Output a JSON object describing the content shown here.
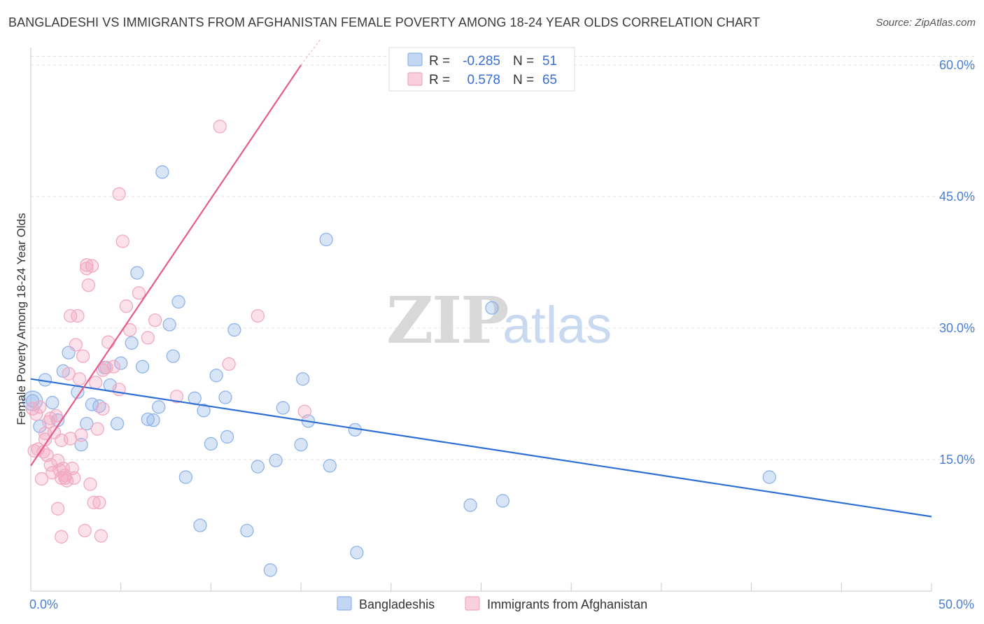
{
  "chart_data": {
    "type": "scatter",
    "title": "BANGLADESHI VS IMMIGRANTS FROM AFGHANISTAN FEMALE POVERTY AMONG 18-24 YEAR OLDS CORRELATION CHART",
    "source": "Source: ZipAtlas.com",
    "ylabel": "Female Poverty Among 18-24 Year Olds",
    "xlim": [
      0,
      50
    ],
    "ylim": [
      0,
      62
    ],
    "x_tick_labels": [
      "0.0%",
      "50.0%"
    ],
    "y_ticks": [
      15,
      30,
      45,
      60
    ],
    "y_tick_labels": [
      "15.0%",
      "30.0%",
      "45.0%",
      "60.0%"
    ],
    "watermark": {
      "zip": "ZIP",
      "atlas": "atlas"
    },
    "legend": {
      "r_label": "R =",
      "n_label": "N =",
      "entries": [
        {
          "r": "-0.285",
          "n": "51"
        },
        {
          "r": "0.578",
          "n": "65"
        }
      ]
    },
    "series": [
      {
        "name": "Bangladeshis",
        "color": "#8fb4e8",
        "line_color": "#2d6fd4",
        "trend": {
          "x": [
            0,
            50
          ],
          "y": [
            24.2,
            8.5
          ]
        },
        "points": [
          [
            0.1,
            21.7
          ],
          [
            0.5,
            18.8
          ],
          [
            0.8,
            24.1
          ],
          [
            1.2,
            21.5
          ],
          [
            1.5,
            19.5
          ],
          [
            1.8,
            25.1
          ],
          [
            2.1,
            27.2
          ],
          [
            2.6,
            22.7
          ],
          [
            2.8,
            16.7
          ],
          [
            3.1,
            19.1
          ],
          [
            3.4,
            21.3
          ],
          [
            3.8,
            21.1
          ],
          [
            4.1,
            25.5
          ],
          [
            4.4,
            23.5
          ],
          [
            4.8,
            19.1
          ],
          [
            5.0,
            26.0
          ],
          [
            5.6,
            28.3
          ],
          [
            5.9,
            36.3
          ],
          [
            6.2,
            25.6
          ],
          [
            6.5,
            19.6
          ],
          [
            6.8,
            19.5
          ],
          [
            7.1,
            21.0
          ],
          [
            7.3,
            47.8
          ],
          [
            7.7,
            30.4
          ],
          [
            7.9,
            26.8
          ],
          [
            8.2,
            33.0
          ],
          [
            8.6,
            13.0
          ],
          [
            9.1,
            22.0
          ],
          [
            9.4,
            7.5
          ],
          [
            9.6,
            20.6
          ],
          [
            10.0,
            16.8
          ],
          [
            10.3,
            24.6
          ],
          [
            10.8,
            22.1
          ],
          [
            10.9,
            17.6
          ],
          [
            11.3,
            29.8
          ],
          [
            12.0,
            6.9
          ],
          [
            12.6,
            14.2
          ],
          [
            13.3,
            2.4
          ],
          [
            13.6,
            14.9
          ],
          [
            14.0,
            20.9
          ],
          [
            15.0,
            16.7
          ],
          [
            15.1,
            24.2
          ],
          [
            15.4,
            19.4
          ],
          [
            16.4,
            40.1
          ],
          [
            16.6,
            14.3
          ],
          [
            18.0,
            18.4
          ],
          [
            18.1,
            4.4
          ],
          [
            24.4,
            9.8
          ],
          [
            25.6,
            32.3
          ],
          [
            26.2,
            10.3
          ],
          [
            41.0,
            13.0
          ]
        ]
      },
      {
        "name": "Immigrants from Afghanistan",
        "color": "#f2a9c2",
        "line_color": "#e55c8a",
        "trend": {
          "x": [
            0,
            15
          ],
          "y": [
            14.3,
            60.0
          ]
        },
        "trend_dashed": {
          "x": [
            15,
            16.1
          ],
          "y": [
            60.0,
            63.0
          ]
        },
        "points": [
          [
            0.1,
            20.8
          ],
          [
            0.2,
            16.0
          ],
          [
            0.3,
            20.2
          ],
          [
            0.4,
            16.2
          ],
          [
            0.5,
            21.0
          ],
          [
            0.6,
            12.8
          ],
          [
            0.7,
            15.9
          ],
          [
            0.8,
            17.3
          ],
          [
            0.8,
            18.0
          ],
          [
            0.9,
            15.5
          ],
          [
            1.0,
            19.3
          ],
          [
            1.1,
            19.7
          ],
          [
            1.1,
            14.4
          ],
          [
            1.2,
            13.5
          ],
          [
            1.3,
            18.1
          ],
          [
            1.4,
            20.0
          ],
          [
            1.5,
            14.9
          ],
          [
            1.5,
            9.4
          ],
          [
            1.6,
            13.8
          ],
          [
            1.7,
            12.9
          ],
          [
            1.7,
            17.2
          ],
          [
            1.7,
            6.2
          ],
          [
            1.8,
            14.0
          ],
          [
            1.9,
            13.2
          ],
          [
            1.9,
            12.9
          ],
          [
            2.0,
            12.6
          ],
          [
            2.1,
            24.8
          ],
          [
            2.2,
            17.4
          ],
          [
            2.2,
            31.4
          ],
          [
            2.3,
            14.0
          ],
          [
            2.4,
            12.9
          ],
          [
            2.5,
            28.1
          ],
          [
            2.6,
            31.4
          ],
          [
            2.7,
            24.2
          ],
          [
            2.8,
            17.8
          ],
          [
            2.9,
            26.8
          ],
          [
            3.0,
            6.9
          ],
          [
            3.1,
            37.2
          ],
          [
            3.1,
            36.8
          ],
          [
            3.2,
            34.9
          ],
          [
            3.3,
            12.2
          ],
          [
            3.4,
            37.1
          ],
          [
            3.5,
            10.1
          ],
          [
            3.6,
            23.8
          ],
          [
            3.7,
            18.5
          ],
          [
            3.8,
            10.1
          ],
          [
            3.9,
            6.3
          ],
          [
            4.0,
            20.8
          ],
          [
            4.0,
            25.2
          ],
          [
            4.2,
            25.5
          ],
          [
            4.3,
            28.4
          ],
          [
            4.6,
            25.6
          ],
          [
            4.9,
            23.0
          ],
          [
            4.9,
            45.3
          ],
          [
            5.1,
            39.9
          ],
          [
            5.3,
            32.5
          ],
          [
            5.5,
            29.8
          ],
          [
            6.0,
            34.0
          ],
          [
            6.5,
            28.9
          ],
          [
            6.9,
            30.9
          ],
          [
            8.1,
            22.2
          ],
          [
            10.5,
            53.0
          ],
          [
            11.0,
            25.9
          ],
          [
            12.6,
            31.4
          ],
          [
            15.2,
            20.5
          ]
        ]
      }
    ]
  }
}
